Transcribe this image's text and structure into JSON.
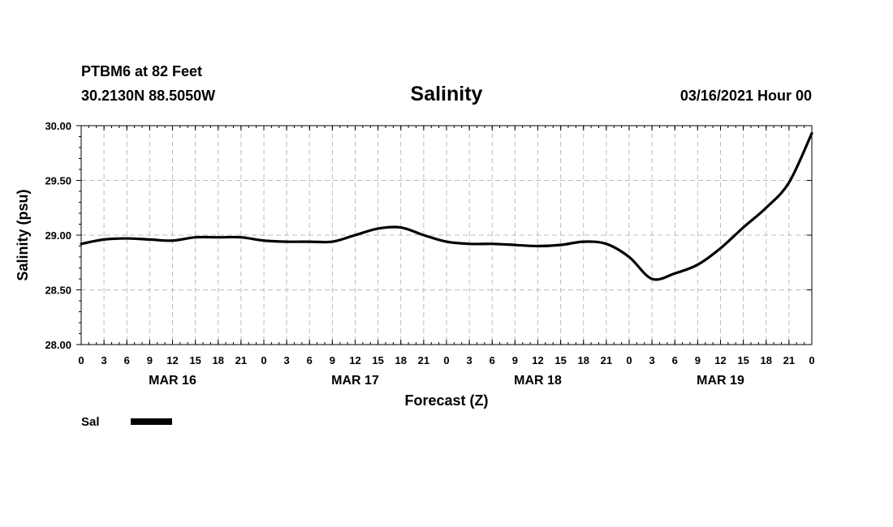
{
  "header": {
    "station": "PTBM6 at 82 Feet",
    "coords": "30.2130N 88.5050W",
    "title": "Salinity",
    "issued": "03/16/2021 Hour 00"
  },
  "chart_data": {
    "type": "line",
    "title": "Salinity",
    "xlabel": "Forecast (Z)",
    "ylabel": "Salinity (psu)",
    "ylim": [
      28.0,
      30.0
    ],
    "y_ticks": [
      "28.00",
      "28.50",
      "29.00",
      "29.50",
      "30.00"
    ],
    "x_range_hours": [
      0,
      96
    ],
    "x_tick_labels": [
      "0",
      "3",
      "6",
      "9",
      "12",
      "15",
      "18",
      "21",
      "0",
      "3",
      "6",
      "9",
      "12",
      "15",
      "18",
      "21",
      "0",
      "3",
      "6",
      "9",
      "12",
      "15",
      "18",
      "21",
      "0",
      "3",
      "6",
      "9",
      "12",
      "15",
      "18",
      "21",
      "0"
    ],
    "day_labels": [
      {
        "label": "MAR 16",
        "hour": 12
      },
      {
        "label": "MAR 17",
        "hour": 36
      },
      {
        "label": "MAR 18",
        "hour": 60
      },
      {
        "label": "MAR 19",
        "hour": 84
      }
    ],
    "grid": true,
    "series": [
      {
        "name": "Sal",
        "x": [
          0,
          3,
          6,
          9,
          12,
          15,
          18,
          21,
          24,
          27,
          30,
          33,
          36,
          39,
          42,
          45,
          48,
          51,
          54,
          57,
          60,
          63,
          66,
          69,
          72,
          75,
          78,
          81,
          84,
          87,
          90,
          93,
          96
        ],
        "values": [
          28.92,
          28.96,
          28.97,
          28.96,
          28.95,
          28.98,
          28.98,
          28.98,
          28.95,
          28.94,
          28.94,
          28.94,
          29.0,
          29.06,
          29.07,
          29.0,
          28.94,
          28.92,
          28.92,
          28.91,
          28.9,
          28.91,
          28.94,
          28.92,
          28.8,
          28.6,
          28.65,
          28.73,
          28.88,
          29.07,
          29.25,
          29.48,
          29.93
        ]
      }
    ]
  },
  "legend": {
    "entries": [
      {
        "label": "Sal",
        "color": "#000000"
      }
    ]
  }
}
